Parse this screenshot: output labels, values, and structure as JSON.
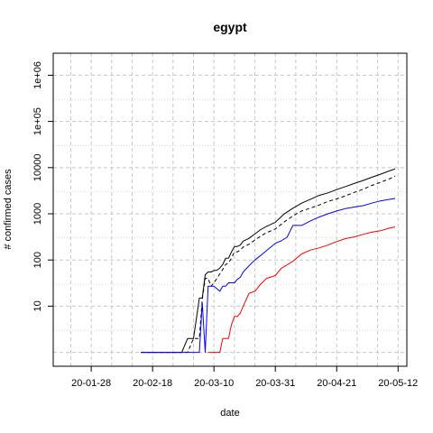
{
  "chart_data": {
    "type": "line",
    "title": "egypt",
    "xlabel": "date",
    "ylabel": "# confirmed cases",
    "y_scale": "log",
    "grid": true,
    "xlim": [
      "2020-01-15",
      "2020-05-15"
    ],
    "ylim": [
      0.5,
      3000000
    ],
    "x_ticks": [
      {
        "date": "2020-01-28",
        "label": "20-01-28"
      },
      {
        "date": "2020-02-18",
        "label": "20-02-18"
      },
      {
        "date": "2020-03-10",
        "label": "20-03-10"
      },
      {
        "date": "2020-03-31",
        "label": "20-03-31"
      },
      {
        "date": "2020-04-21",
        "label": "20-04-21"
      },
      {
        "date": "2020-05-12",
        "label": "20-05-12"
      }
    ],
    "y_ticks": [
      {
        "value": 10,
        "label": "10"
      },
      {
        "value": 100,
        "label": "100"
      },
      {
        "value": 1000,
        "label": "1000"
      },
      {
        "value": 10000,
        "label": "10000"
      },
      {
        "value": 100000,
        "label": "1e+05"
      },
      {
        "value": 1000000,
        "label": "1e+06"
      }
    ],
    "series": [
      {
        "color": "#000000",
        "dash": "solid",
        "points": [
          [
            "2020-02-14",
            1
          ],
          [
            "2020-02-20",
            1
          ],
          [
            "2020-02-28",
            1
          ],
          [
            "2020-03-01",
            2
          ],
          [
            "2020-03-03",
            2
          ],
          [
            "2020-03-05",
            15
          ],
          [
            "2020-03-06",
            15
          ],
          [
            "2020-03-07",
            48
          ],
          [
            "2020-03-08",
            55
          ],
          [
            "2020-03-09",
            55
          ],
          [
            "2020-03-10",
            59
          ],
          [
            "2020-03-11",
            60
          ],
          [
            "2020-03-12",
            67
          ],
          [
            "2020-03-13",
            80
          ],
          [
            "2020-03-14",
            109
          ],
          [
            "2020-03-15",
            110
          ],
          [
            "2020-03-16",
            150
          ],
          [
            "2020-03-17",
            196
          ],
          [
            "2020-03-18",
            196
          ],
          [
            "2020-03-19",
            210
          ],
          [
            "2020-03-20",
            256
          ],
          [
            "2020-03-22",
            294
          ],
          [
            "2020-03-24",
            366
          ],
          [
            "2020-03-26",
            456
          ],
          [
            "2020-03-28",
            536
          ],
          [
            "2020-03-31",
            656
          ],
          [
            "2020-04-03",
            985
          ],
          [
            "2020-04-06",
            1322
          ],
          [
            "2020-04-09",
            1699
          ],
          [
            "2020-04-12",
            2065
          ],
          [
            "2020-04-15",
            2505
          ],
          [
            "2020-04-18",
            2844
          ],
          [
            "2020-04-21",
            3333
          ],
          [
            "2020-04-24",
            3891
          ],
          [
            "2020-04-27",
            4534
          ],
          [
            "2020-04-30",
            5268
          ],
          [
            "2020-05-03",
            6193
          ],
          [
            "2020-05-06",
            7201
          ],
          [
            "2020-05-09",
            8476
          ],
          [
            "2020-05-11",
            9400
          ]
        ]
      },
      {
        "color": "#000000",
        "dash": "dashed",
        "points": [
          [
            "2020-02-14",
            1
          ],
          [
            "2020-02-28",
            1
          ],
          [
            "2020-03-01",
            1
          ],
          [
            "2020-03-03",
            2
          ],
          [
            "2020-03-05",
            2
          ],
          [
            "2020-03-06",
            14
          ],
          [
            "2020-03-07",
            40
          ],
          [
            "2020-03-08",
            40
          ],
          [
            "2020-03-09",
            27
          ],
          [
            "2020-03-10",
            32
          ],
          [
            "2020-03-11",
            40
          ],
          [
            "2020-03-12",
            50
          ],
          [
            "2020-03-13",
            62
          ],
          [
            "2020-03-14",
            80
          ],
          [
            "2020-03-15",
            86
          ],
          [
            "2020-03-16",
            110
          ],
          [
            "2020-03-17",
            150
          ],
          [
            "2020-03-18",
            150
          ],
          [
            "2020-03-19",
            165
          ],
          [
            "2020-03-20",
            190
          ],
          [
            "2020-03-22",
            220
          ],
          [
            "2020-03-24",
            270
          ],
          [
            "2020-03-26",
            330
          ],
          [
            "2020-03-28",
            390
          ],
          [
            "2020-03-31",
            470
          ],
          [
            "2020-04-03",
            660
          ],
          [
            "2020-04-06",
            900
          ],
          [
            "2020-04-09",
            1150
          ],
          [
            "2020-04-12",
            1330
          ],
          [
            "2020-04-15",
            1550
          ],
          [
            "2020-04-18",
            1850
          ],
          [
            "2020-04-21",
            2100
          ],
          [
            "2020-04-24",
            2450
          ],
          [
            "2020-04-27",
            2900
          ],
          [
            "2020-04-30",
            3400
          ],
          [
            "2020-05-03",
            4100
          ],
          [
            "2020-05-06",
            4800
          ],
          [
            "2020-05-09",
            5700
          ],
          [
            "2020-05-11",
            6600
          ]
        ]
      },
      {
        "color": "#0000ff",
        "dash": "solid",
        "points": [
          [
            "2020-02-14",
            1
          ],
          [
            "2020-03-05",
            1
          ],
          [
            "2020-03-06",
            12
          ],
          [
            "2020-03-07",
            1
          ],
          [
            "2020-03-08",
            27
          ],
          [
            "2020-03-10",
            27
          ],
          [
            "2020-03-12",
            21
          ],
          [
            "2020-03-13",
            27
          ],
          [
            "2020-03-14",
            27
          ],
          [
            "2020-03-15",
            32
          ],
          [
            "2020-03-17",
            32
          ],
          [
            "2020-03-18",
            38
          ],
          [
            "2020-03-19",
            42
          ],
          [
            "2020-03-20",
            55
          ],
          [
            "2020-03-22",
            75
          ],
          [
            "2020-03-24",
            100
          ],
          [
            "2020-03-26",
            125
          ],
          [
            "2020-03-28",
            160
          ],
          [
            "2020-03-31",
            230
          ],
          [
            "2020-04-02",
            260
          ],
          [
            "2020-04-04",
            310
          ],
          [
            "2020-04-06",
            560
          ],
          [
            "2020-04-09",
            560
          ],
          [
            "2020-04-12",
            700
          ],
          [
            "2020-04-15",
            850
          ],
          [
            "2020-04-18",
            1000
          ],
          [
            "2020-04-21",
            1150
          ],
          [
            "2020-04-24",
            1300
          ],
          [
            "2020-04-27",
            1400
          ],
          [
            "2020-04-30",
            1500
          ],
          [
            "2020-05-03",
            1700
          ],
          [
            "2020-05-06",
            1900
          ],
          [
            "2020-05-09",
            2050
          ],
          [
            "2020-05-11",
            2150
          ]
        ]
      },
      {
        "color": "#ff0000",
        "dash": "solid",
        "points": [
          [
            "2020-03-08",
            1
          ],
          [
            "2020-03-12",
            1
          ],
          [
            "2020-03-13",
            2
          ],
          [
            "2020-03-15",
            2
          ],
          [
            "2020-03-16",
            4
          ],
          [
            "2020-03-17",
            6
          ],
          [
            "2020-03-18",
            6
          ],
          [
            "2020-03-19",
            7
          ],
          [
            "2020-03-20",
            10
          ],
          [
            "2020-03-22",
            19
          ],
          [
            "2020-03-24",
            21
          ],
          [
            "2020-03-26",
            30
          ],
          [
            "2020-03-28",
            40
          ],
          [
            "2020-03-31",
            46
          ],
          [
            "2020-04-02",
            66
          ],
          [
            "2020-04-04",
            78
          ],
          [
            "2020-04-06",
            94
          ],
          [
            "2020-04-09",
            135
          ],
          [
            "2020-04-12",
            164
          ],
          [
            "2020-04-15",
            183
          ],
          [
            "2020-04-18",
            210
          ],
          [
            "2020-04-21",
            250
          ],
          [
            "2020-04-24",
            290
          ],
          [
            "2020-04-27",
            317
          ],
          [
            "2020-04-30",
            359
          ],
          [
            "2020-05-03",
            400
          ],
          [
            "2020-05-06",
            430
          ],
          [
            "2020-05-09",
            490
          ],
          [
            "2020-05-11",
            520
          ]
        ]
      }
    ]
  }
}
